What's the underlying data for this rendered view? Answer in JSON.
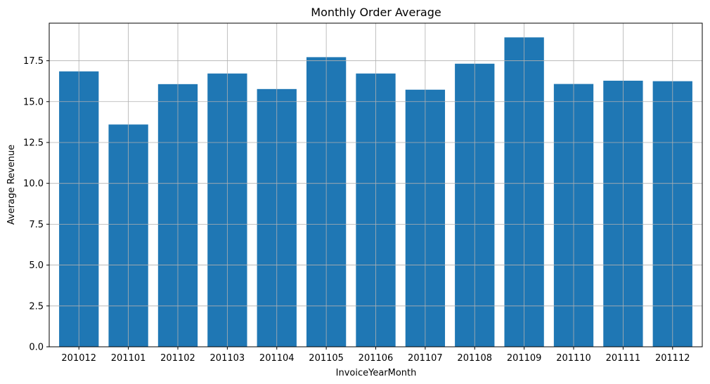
{
  "chart_data": {
    "type": "bar",
    "title": "Monthly Order Average",
    "xlabel": "InvoiceYearMonth",
    "ylabel": "Average Revenue",
    "categories": [
      "201012",
      "201101",
      "201102",
      "201103",
      "201104",
      "201105",
      "201106",
      "201107",
      "201108",
      "201109",
      "201110",
      "201111",
      "201112"
    ],
    "values": [
      16.85,
      13.6,
      16.07,
      16.72,
      15.77,
      17.72,
      16.72,
      15.73,
      17.32,
      18.93,
      16.08,
      16.28,
      16.25
    ],
    "ylim": [
      0,
      19.8
    ],
    "yticks": [
      0.0,
      2.5,
      5.0,
      7.5,
      10.0,
      12.5,
      15.0,
      17.5
    ],
    "ytick_labels": [
      "0.0",
      "2.5",
      "5.0",
      "7.5",
      "10.0",
      "12.5",
      "15.0",
      "17.5"
    ],
    "grid": true,
    "bar_color": "#1f77b4",
    "grid_color": "#b0b0b0"
  }
}
